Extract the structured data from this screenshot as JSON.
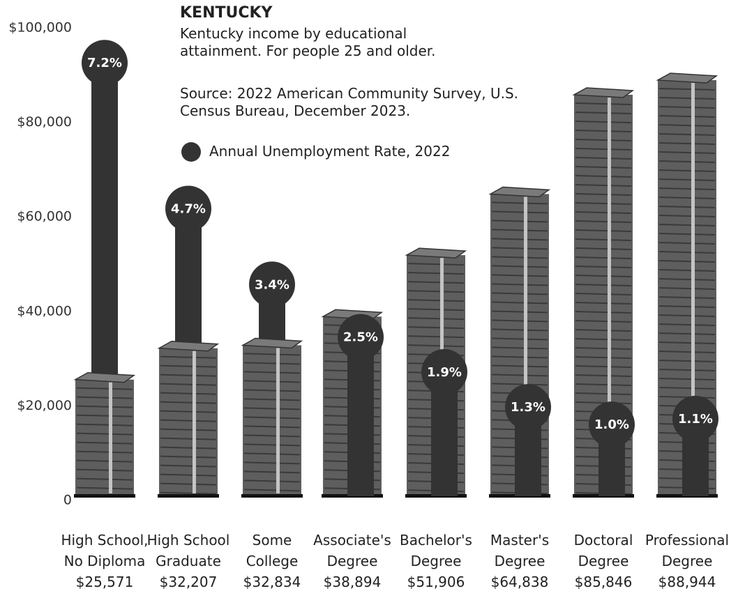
{
  "chart_data": {
    "type": "bar",
    "title": "KENTUCKY",
    "subtitle": "Kentucky income by educational attainment. For people 25 and older.",
    "source": "Source: 2022 American Community Survey, U.S. Census Bureau, December 2023.",
    "categories": [
      "High School, No Diploma",
      "High School Graduate",
      "Some College",
      "Associate's Degree",
      "Bachelor's Degree",
      "Master's Degree",
      "Doctoral Degree",
      "Professional Degree"
    ],
    "values": [
      25571,
      32207,
      32834,
      38894,
      51906,
      64838,
      85846,
      88944
    ],
    "value_labels": [
      "$25,571",
      "$32,207",
      "$32,834",
      "$38,894",
      "$51,906",
      "$64,838",
      "$85,846",
      "$88,944"
    ],
    "color": "#5e5e5e",
    "ylim": [
      0,
      100000
    ],
    "yticks": [
      0,
      {
        "value": 20000,
        "label": "$20,000"
      },
      {
        "value": 40000,
        "label": "$40,000"
      },
      {
        "value": 60000,
        "label": "$60,000"
      },
      {
        "value": 80000,
        "label": "$80,000"
      },
      {
        "value": 100000,
        "label": "$100,000"
      }
    ],
    "y2lim": [
      -0.3,
      7.8
    ],
    "series": [
      {
        "name": "Annual Unemployment Rate, 2022",
        "type": "lollipop",
        "axis": "y2",
        "color": "#333333",
        "values": [
          7.2,
          4.7,
          3.4,
          2.5,
          1.9,
          1.3,
          1.0,
          1.1
        ],
        "value_labels": [
          "7.2%",
          "4.7%",
          "3.4%",
          "2.5%",
          "1.9%",
          "1.3%",
          "1.0%",
          "1.1%"
        ]
      }
    ]
  }
}
